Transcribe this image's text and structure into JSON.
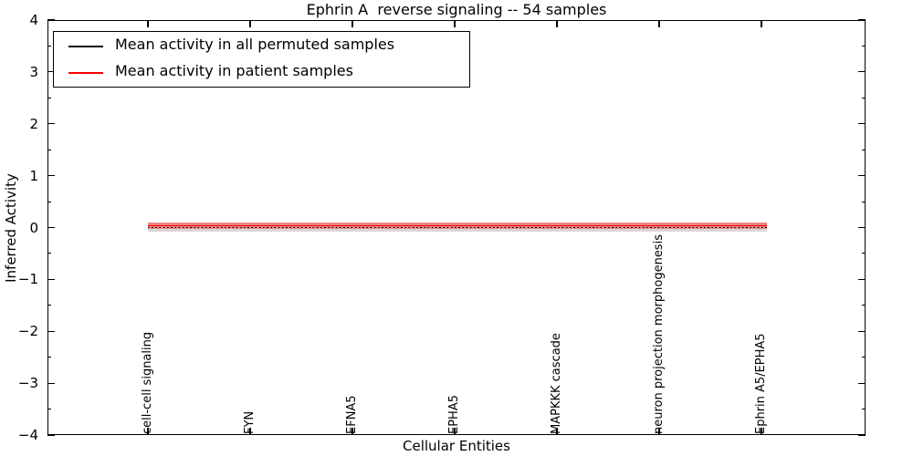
{
  "title": "Ephrin A  reverse signaling -- 54 samples",
  "axes": {
    "xlabel": "Cellular Entities",
    "ylabel": "Inferred Activity",
    "y_tick_labels": [
      "4",
      "3",
      "2",
      "1",
      "0",
      "−1",
      "−2",
      "−3",
      "−4"
    ]
  },
  "legend": {
    "entries": [
      {
        "label": "Mean activity in all permuted samples",
        "color": "#000000"
      },
      {
        "label": "Mean activity in patient samples",
        "color": "#ff0000"
      }
    ]
  },
  "chart_data": {
    "type": "line",
    "title": "Ephrin A  reverse signaling -- 54 samples",
    "xlabel": "Cellular Entities",
    "ylabel": "Inferred Activity",
    "categories": [
      "cell-cell signaling",
      "FYN",
      "EFNA5",
      "EPHA5",
      "MAPKKK cascade",
      "neuron projection morphogenesis",
      "Ephrin A5/EPHA5"
    ],
    "series": [
      {
        "name": "Mean activity in all permuted samples",
        "color": "#000000",
        "style": "dotted",
        "values": [
          0.0,
          -0.02,
          -0.01,
          -0.01,
          0.0,
          0.0,
          0.01
        ]
      },
      {
        "name": "Mean activity in patient samples",
        "color": "#ff0000",
        "style": "solid",
        "values": [
          0.04,
          0.02,
          0.03,
          0.03,
          0.04,
          0.04,
          0.05
        ]
      }
    ],
    "bands": [
      {
        "name": "permuted samples spread",
        "color": "#d8d8d8",
        "range": [
          -0.08,
          0.1
        ]
      },
      {
        "name": "patient samples spread",
        "color": "rgba(255,0,0,0.38)",
        "range": [
          -0.03,
          0.09
        ]
      }
    ],
    "ylim": [
      -4,
      4
    ],
    "y_major_ticks": [
      4,
      3,
      2,
      1,
      0,
      -1,
      -2,
      -3,
      -4
    ],
    "y_minor_ticks": [
      3.5,
      2.5,
      1.5,
      0.5,
      -0.5,
      -1.5,
      -2.5,
      -3.5
    ],
    "grid": false,
    "legend_position": "upper left"
  }
}
